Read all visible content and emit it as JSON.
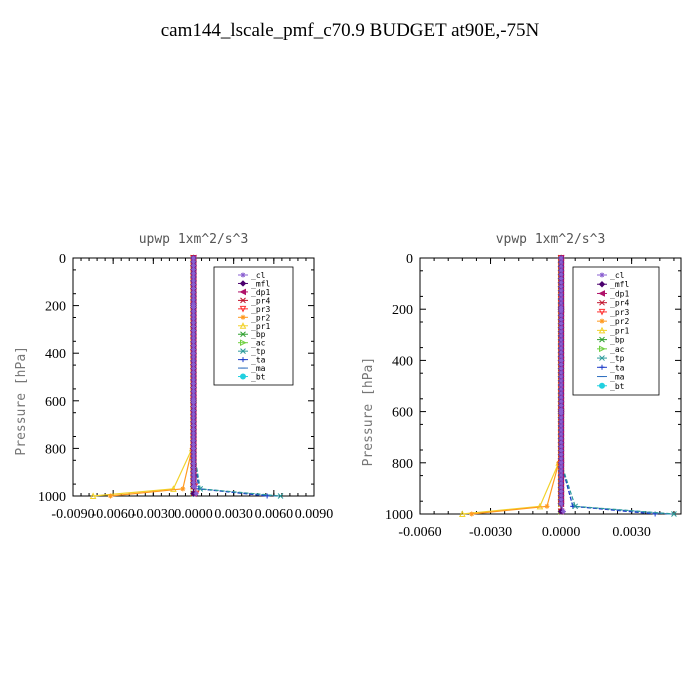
{
  "page_title": "cam144_lscale_pmf_c70.9  BUDGET at90E,-75N",
  "chart_data": [
    {
      "type": "line",
      "title": "upwp   1xm^2/s^3",
      "xlabel": "",
      "ylabel": "Pressure [hPa]",
      "xlim": [
        -0.009,
        0.009
      ],
      "ylim": [
        1000,
        0
      ],
      "x_ticks": [
        "-0.0090",
        "-0.0060",
        "-0.0030",
        "0.0000",
        "0.0030",
        "0.0060",
        "0.0090"
      ],
      "x_tick_values": [
        -0.009,
        -0.006,
        -0.003,
        0,
        0.003,
        0.006,
        0.009
      ],
      "y_ticks": [
        "0",
        "200",
        "400",
        "600",
        "800",
        "1000"
      ],
      "y_tick_values": [
        0,
        200,
        400,
        600,
        800,
        1000
      ],
      "legend_position": "top-right",
      "series": [
        {
          "name": "_cl",
          "color": "#8a5fd0",
          "marker": "star",
          "x": [
            0,
            0,
            0,
            0,
            0,
            0.0001,
            0.0002
          ],
          "y": [
            0,
            200,
            400,
            600,
            800,
            960,
            990
          ]
        },
        {
          "name": "_mfl",
          "color": "#4b006e",
          "marker": "diamond",
          "x": [
            0,
            0,
            0,
            0,
            0,
            0,
            0
          ],
          "y": [
            0,
            200,
            400,
            600,
            800,
            960,
            990
          ]
        },
        {
          "name": "_dp1",
          "color": "#b0126a",
          "marker": "triangle-left",
          "x": [
            0,
            0,
            0,
            0,
            0,
            0,
            0
          ],
          "y": [
            0,
            200,
            400,
            600,
            800,
            960,
            990
          ]
        },
        {
          "name": "_pr4",
          "color": "#c0102a",
          "marker": "x",
          "x": [
            0,
            0,
            0,
            0,
            0,
            0,
            0
          ],
          "y": [
            0,
            200,
            400,
            600,
            800,
            960,
            990
          ]
        },
        {
          "name": "_pr3",
          "color": "#ff3030",
          "marker": "triangle-down",
          "x": [
            0,
            0,
            0,
            0,
            0,
            0.0001,
            0.0002
          ],
          "y": [
            0,
            200,
            400,
            600,
            800,
            960,
            990
          ]
        },
        {
          "name": "_pr2",
          "color": "#ff9a20",
          "marker": "star",
          "x": [
            0,
            0,
            0,
            0,
            -0.0001,
            -0.0008,
            -0.0062
          ],
          "y": [
            0,
            200,
            400,
            600,
            800,
            970,
            1000
          ]
        },
        {
          "name": "_pr1",
          "color": "#f2d22a",
          "marker": "triangle-up",
          "x": [
            0,
            0,
            0,
            0,
            -0.0001,
            -0.0015,
            -0.0075
          ],
          "y": [
            0,
            200,
            400,
            600,
            800,
            970,
            1000
          ]
        },
        {
          "name": "_bp",
          "color": "#2fa02f",
          "marker": "x",
          "x": [
            0,
            0,
            0,
            0,
            0,
            0,
            0
          ],
          "y": [
            0,
            200,
            400,
            600,
            800,
            960,
            990
          ]
        },
        {
          "name": "_ac",
          "color": "#6fd040",
          "marker": "triangle-right",
          "x": [
            0,
            0,
            0,
            0,
            0,
            0,
            0
          ],
          "y": [
            0,
            200,
            400,
            600,
            800,
            960,
            990
          ]
        },
        {
          "name": "_tp",
          "color": "#2a9a9a",
          "marker": "x",
          "x": [
            0,
            0,
            0,
            0,
            0,
            0.0005,
            0.0065
          ],
          "y": [
            0,
            200,
            400,
            600,
            800,
            970,
            1000
          ]
        },
        {
          "name": "_ta",
          "color": "#1e3cc8",
          "marker": "plus",
          "x": [
            0,
            0,
            0,
            0,
            0,
            0.0004,
            0.0055
          ],
          "y": [
            0,
            200,
            400,
            600,
            800,
            970,
            1000
          ]
        },
        {
          "name": "_ma",
          "color": "#3070c0",
          "marker": "dash",
          "x": [
            0,
            0,
            0,
            0,
            0,
            0.0004,
            0.0062
          ],
          "y": [
            0,
            200,
            400,
            600,
            800,
            970,
            1000
          ]
        },
        {
          "name": "_bt",
          "color": "#20d0e0",
          "marker": "circle",
          "x": [
            0,
            0,
            0,
            0,
            0,
            0,
            0
          ],
          "y": [
            0,
            200,
            400,
            600,
            800,
            960,
            990
          ]
        }
      ]
    },
    {
      "type": "line",
      "title": "vpwp   1xm^2/s^3",
      "xlabel": "",
      "ylabel": "Pressure [hPa]",
      "xlim": [
        -0.006,
        0.0051
      ],
      "ylim": [
        1000,
        0
      ],
      "x_ticks": [
        "-0.0060",
        "-0.0030",
        "0.0000",
        "0.0030"
      ],
      "x_tick_values": [
        -0.006,
        -0.003,
        0,
        0.003
      ],
      "y_ticks": [
        "0",
        "200",
        "400",
        "600",
        "800",
        "1000"
      ],
      "y_tick_values": [
        0,
        200,
        400,
        600,
        800,
        1000
      ],
      "legend_position": "top-right",
      "series": [
        {
          "name": "_cl",
          "color": "#8a5fd0",
          "marker": "star",
          "x": [
            0,
            0,
            0,
            0,
            0,
            0,
            0.0001
          ],
          "y": [
            0,
            200,
            400,
            600,
            800,
            960,
            990
          ]
        },
        {
          "name": "_mfl",
          "color": "#4b006e",
          "marker": "diamond",
          "x": [
            0,
            0,
            0,
            0,
            0,
            0,
            0
          ],
          "y": [
            0,
            200,
            400,
            600,
            800,
            960,
            990
          ]
        },
        {
          "name": "_dp1",
          "color": "#b0126a",
          "marker": "triangle-left",
          "x": [
            0,
            0,
            0,
            0,
            0,
            0,
            0
          ],
          "y": [
            0,
            200,
            400,
            600,
            800,
            960,
            990
          ]
        },
        {
          "name": "_pr4",
          "color": "#c0102a",
          "marker": "x",
          "x": [
            0,
            0,
            0,
            0,
            0,
            0,
            0
          ],
          "y": [
            0,
            200,
            400,
            600,
            800,
            960,
            990
          ]
        },
        {
          "name": "_pr3",
          "color": "#ff3030",
          "marker": "triangle-down",
          "x": [
            0,
            0,
            0,
            0,
            0,
            0,
            0
          ],
          "y": [
            0,
            200,
            400,
            600,
            800,
            960,
            990
          ]
        },
        {
          "name": "_pr2",
          "color": "#ff9a20",
          "marker": "star",
          "x": [
            0,
            0,
            0,
            0,
            -0.0001,
            -0.0006,
            -0.0038
          ],
          "y": [
            0,
            200,
            400,
            600,
            800,
            970,
            1000
          ]
        },
        {
          "name": "_pr1",
          "color": "#f2d22a",
          "marker": "triangle-up",
          "x": [
            0,
            0,
            0,
            0,
            -0.0001,
            -0.0009,
            -0.0042
          ],
          "y": [
            0,
            200,
            400,
            600,
            800,
            970,
            1000
          ]
        },
        {
          "name": "_bp",
          "color": "#2fa02f",
          "marker": "x",
          "x": [
            0,
            0,
            0,
            0,
            0,
            0,
            0
          ],
          "y": [
            0,
            200,
            400,
            600,
            800,
            960,
            990
          ]
        },
        {
          "name": "_ac",
          "color": "#6fd040",
          "marker": "triangle-right",
          "x": [
            0,
            0,
            0,
            0,
            0,
            0,
            0
          ],
          "y": [
            0,
            200,
            400,
            600,
            800,
            960,
            990
          ]
        },
        {
          "name": "_tp",
          "color": "#2a9a9a",
          "marker": "x",
          "x": [
            0,
            0,
            0,
            0,
            0,
            0.0006,
            0.0048
          ],
          "y": [
            0,
            200,
            400,
            600,
            800,
            970,
            1000
          ]
        },
        {
          "name": "_ta",
          "color": "#1e3cc8",
          "marker": "plus",
          "x": [
            0,
            0,
            0,
            0,
            0,
            0.0005,
            0.004
          ],
          "y": [
            0,
            200,
            400,
            600,
            800,
            970,
            1000
          ]
        },
        {
          "name": "_ma",
          "color": "#3070c0",
          "marker": "dash",
          "x": [
            0,
            0,
            0,
            0,
            0,
            0.0005,
            0.0046
          ],
          "y": [
            0,
            200,
            400,
            600,
            800,
            970,
            1000
          ]
        },
        {
          "name": "_bt",
          "color": "#20d0e0",
          "marker": "circle",
          "x": [
            0,
            0,
            0,
            0,
            0,
            0,
            0
          ],
          "y": [
            0,
            200,
            400,
            600,
            800,
            960,
            990
          ]
        }
      ]
    }
  ]
}
